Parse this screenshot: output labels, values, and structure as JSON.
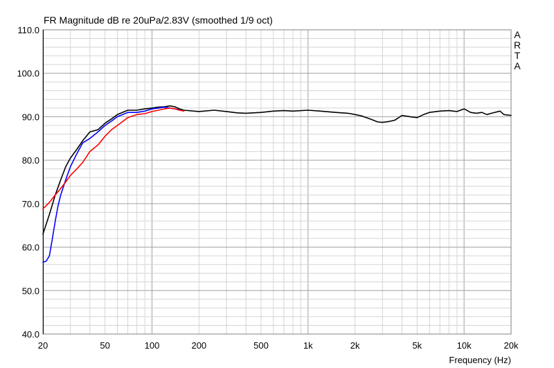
{
  "chart_data": {
    "type": "line",
    "title": "FR Magnitude dB re 20uPa/2.83V (smoothed 1/9 oct)",
    "xlabel": "Frequency (Hz)",
    "ylabel": "",
    "xscale": "log",
    "xlim": [
      20,
      20000
    ],
    "ylim": [
      40,
      110
    ],
    "grid": true,
    "x_ticks": [
      {
        "value": 20,
        "label": "20"
      },
      {
        "value": 50,
        "label": "50"
      },
      {
        "value": 100,
        "label": "100"
      },
      {
        "value": 200,
        "label": "200"
      },
      {
        "value": 500,
        "label": "500"
      },
      {
        "value": 1000,
        "label": "1k"
      },
      {
        "value": 2000,
        "label": "2k"
      },
      {
        "value": 5000,
        "label": "5k"
      },
      {
        "value": 10000,
        "label": "10k"
      },
      {
        "value": 20000,
        "label": "20k"
      }
    ],
    "y_ticks": [
      {
        "value": 110,
        "label": "110.0"
      },
      {
        "value": 100,
        "label": "100.0"
      },
      {
        "value": 90,
        "label": "90.0"
      },
      {
        "value": 80,
        "label": "80.0"
      },
      {
        "value": 70,
        "label": "70.0"
      },
      {
        "value": 60,
        "label": "60.0"
      },
      {
        "value": 50,
        "label": "50.0"
      },
      {
        "value": 40,
        "label": "40.0"
      }
    ],
    "brand": [
      "A",
      "R",
      "T",
      "A"
    ],
    "series": [
      {
        "color": "#000000",
        "x": [
          20,
          22,
          24,
          26,
          28,
          30,
          33,
          36,
          40,
          45,
          50,
          55,
          60,
          70,
          80,
          90,
          100,
          110,
          120,
          130,
          140,
          150,
          160,
          200,
          250,
          300,
          350,
          400,
          500,
          600,
          700,
          800,
          1000,
          1200,
          1500,
          1800,
          2000,
          2200,
          2500,
          2800,
          3000,
          3300,
          3600,
          4000,
          4500,
          5000,
          5500,
          6000,
          7000,
          8000,
          9000,
          10000,
          11000,
          12000,
          13000,
          14000,
          15000,
          17000,
          18000,
          20000
        ],
        "y": [
          63.0,
          67.5,
          72.0,
          75.5,
          78.5,
          80.5,
          82.5,
          84.5,
          86.5,
          87.0,
          88.5,
          89.5,
          90.5,
          91.5,
          91.5,
          91.8,
          92.0,
          92.2,
          92.3,
          92.5,
          92.3,
          91.8,
          91.5,
          91.2,
          91.5,
          91.2,
          90.9,
          90.8,
          91.0,
          91.3,
          91.4,
          91.3,
          91.5,
          91.3,
          91.0,
          90.8,
          90.5,
          90.2,
          89.5,
          88.8,
          88.7,
          88.9,
          89.2,
          90.3,
          90.0,
          89.8,
          90.5,
          91.0,
          91.3,
          91.4,
          91.2,
          91.8,
          91.0,
          90.8,
          91.0,
          90.5,
          90.8,
          91.3,
          90.5,
          90.3
        ]
      },
      {
        "color": "#0000ff",
        "x": [
          20,
          21,
          22,
          23,
          24,
          25,
          26,
          28,
          30,
          33,
          36,
          40,
          45,
          50,
          55,
          60,
          70,
          80,
          90,
          100,
          110,
          120,
          130,
          140,
          150
        ],
        "y": [
          56.5,
          56.8,
          58.0,
          62.0,
          66.0,
          69.5,
          72.0,
          75.5,
          78.5,
          81.5,
          84.0,
          85.0,
          86.5,
          88.0,
          89.0,
          90.0,
          91.0,
          91.0,
          91.3,
          91.8,
          92.0,
          92.2,
          92.0,
          91.8,
          91.6
        ]
      },
      {
        "color": "#ff0000",
        "x": [
          20,
          22,
          24,
          26,
          28,
          30,
          33,
          36,
          40,
          45,
          50,
          55,
          60,
          70,
          80,
          90,
          100,
          110,
          120,
          130,
          140,
          150,
          160
        ],
        "y": [
          68.8,
          70.3,
          72.0,
          73.5,
          75.0,
          76.5,
          78.0,
          79.5,
          82.0,
          83.5,
          85.5,
          87.0,
          88.0,
          89.8,
          90.5,
          90.7,
          91.2,
          91.5,
          91.8,
          92.0,
          91.8,
          91.5,
          91.3
        ]
      }
    ]
  }
}
